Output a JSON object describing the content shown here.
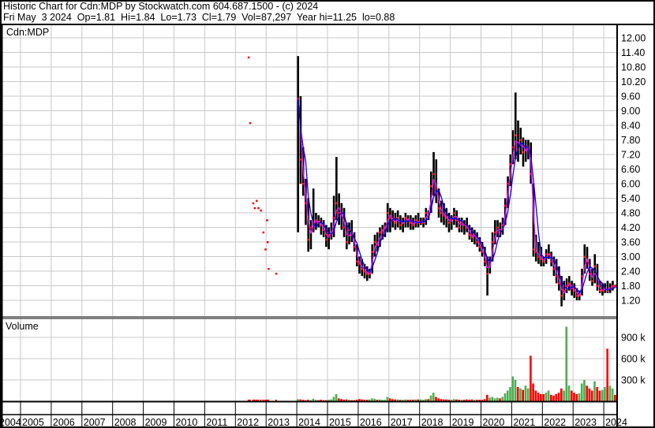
{
  "header": {
    "title": "Historic Chart for Cdn:MDP by Stockwatch.com 604.687.1500 - (c) 2024",
    "quote": "Fri May  3 2024  Op=1.81  Hi=1.84  Lo=1.73  Cl=1.79  Vol=87,297  Year hi=11.25  lo=0.88"
  },
  "colors": {
    "price_bar": "#000000",
    "close_mark": "#ff0000",
    "ma_short": "#ff00ff",
    "ma_long": "#0000ff",
    "vol_up": "#4caf50",
    "vol_down": "#ff0000",
    "grid": "#c8c8c8"
  },
  "chart_data": {
    "type": "ohlc",
    "symbol_label": "Cdn:MDP",
    "volume_label": "Volume",
    "y_ticks": [
      "12.00",
      "11.40",
      "10.80",
      "10.20",
      "9.60",
      "9.00",
      "8.40",
      "7.80",
      "7.20",
      "6.60",
      "6.00",
      "5.40",
      "4.80",
      "4.20",
      "3.60",
      "3.00",
      "2.40",
      "1.80",
      "1.20"
    ],
    "ylim": [
      1.2,
      12.0
    ],
    "volume_ticks": [
      "900 k",
      "600 k",
      "300 k"
    ],
    "volume_ylim": [
      0,
      900
    ],
    "x_ticks": [
      "2004",
      "2005",
      "2006",
      "2007",
      "2008",
      "2009",
      "2010",
      "2011",
      "2012",
      "2013",
      "2014",
      "2015",
      "2016",
      "2017",
      "2018",
      "2019",
      "2020",
      "2021",
      "2022",
      "2023",
      "2024"
    ],
    "grid": true,
    "sparse_trades": [
      {
        "t": 2012.4,
        "close": 11.2
      },
      {
        "t": 2012.45,
        "close": 8.5
      },
      {
        "t": 2012.55,
        "close": 5.2
      },
      {
        "t": 2012.6,
        "close": 5.0
      },
      {
        "t": 2012.66,
        "close": 5.3
      },
      {
        "t": 2012.72,
        "close": 5.0
      },
      {
        "t": 2012.8,
        "close": 4.9
      },
      {
        "t": 2012.88,
        "close": 4.0
      },
      {
        "t": 2012.95,
        "close": 3.3
      },
      {
        "t": 2013.0,
        "close": 4.5
      },
      {
        "t": 2013.02,
        "close": 3.6
      },
      {
        "t": 2013.05,
        "close": 2.5
      },
      {
        "t": 2013.3,
        "close": 2.3
      }
    ],
    "months": [
      "2014-01",
      "2014-02",
      "2014-03",
      "2014-04",
      "2014-05",
      "2014-06",
      "2014-07",
      "2014-08",
      "2014-09",
      "2014-10",
      "2014-11",
      "2014-12",
      "2015-01",
      "2015-02",
      "2015-03",
      "2015-04",
      "2015-05",
      "2015-06",
      "2015-07",
      "2015-08",
      "2015-09",
      "2015-10",
      "2015-11",
      "2015-12",
      "2016-01",
      "2016-02",
      "2016-03",
      "2016-04",
      "2016-05",
      "2016-06",
      "2016-07",
      "2016-08",
      "2016-09",
      "2016-10",
      "2016-11",
      "2016-12",
      "2017-01",
      "2017-02",
      "2017-03",
      "2017-04",
      "2017-05",
      "2017-06",
      "2017-07",
      "2017-08",
      "2017-09",
      "2017-10",
      "2017-11",
      "2017-12",
      "2018-01",
      "2018-02",
      "2018-03",
      "2018-04",
      "2018-05",
      "2018-06",
      "2018-07",
      "2018-08",
      "2018-09",
      "2018-10",
      "2018-11",
      "2018-12",
      "2019-01",
      "2019-02",
      "2019-03",
      "2019-04",
      "2019-05",
      "2019-06",
      "2019-07",
      "2019-08",
      "2019-09",
      "2019-10",
      "2019-11",
      "2019-12",
      "2020-01",
      "2020-02",
      "2020-03",
      "2020-04",
      "2020-05",
      "2020-06",
      "2020-07",
      "2020-08",
      "2020-09",
      "2020-10",
      "2020-11",
      "2020-12",
      "2021-01",
      "2021-02",
      "2021-03",
      "2021-04",
      "2021-05",
      "2021-06",
      "2021-07",
      "2021-08",
      "2021-09",
      "2021-10",
      "2021-11",
      "2021-12",
      "2022-01",
      "2022-02",
      "2022-03",
      "2022-04",
      "2022-05",
      "2022-06",
      "2022-07",
      "2022-08",
      "2022-09",
      "2022-10",
      "2022-11",
      "2022-12",
      "2023-01",
      "2023-02",
      "2023-03",
      "2023-04",
      "2023-05",
      "2023-06",
      "2023-07",
      "2023-08",
      "2023-09",
      "2023-10",
      "2023-11",
      "2023-12",
      "2024-01",
      "2024-02",
      "2024-03",
      "2024-04",
      "2024-05"
    ],
    "high": [
      11.25,
      9.6,
      7.5,
      6.2,
      5.4,
      4.5,
      5.8,
      4.8,
      4.7,
      4.6,
      4.5,
      4.3,
      4.2,
      4.4,
      5.5,
      7.1,
      5.6,
      5.2,
      5.0,
      4.4,
      4.4,
      4.5,
      4.0,
      3.5,
      3.0,
      2.9,
      2.7,
      2.6,
      2.5,
      3.5,
      3.9,
      4.0,
      4.2,
      4.3,
      4.4,
      5.2,
      5.0,
      4.9,
      4.8,
      4.9,
      4.7,
      4.6,
      4.8,
      4.7,
      4.7,
      4.6,
      4.7,
      4.8,
      4.6,
      4.6,
      5.0,
      4.9,
      6.5,
      7.3,
      7.0,
      5.8,
      5.3,
      5.2,
      5.0,
      4.8,
      4.7,
      5.0,
      4.9,
      4.6,
      4.6,
      4.5,
      4.6,
      4.3,
      4.2,
      4.1,
      4.0,
      3.8,
      3.6,
      3.4,
      3.0,
      3.0,
      4.0,
      4.5,
      4.5,
      4.4,
      4.6,
      5.4,
      6.3,
      7.2,
      8.2,
      9.75,
      8.6,
      8.3,
      7.9,
      7.8,
      7.8,
      7.7,
      6.0,
      3.9,
      3.6,
      3.4,
      3.0,
      3.3,
      3.5,
      3.2,
      3.0,
      2.9,
      2.6,
      2.2,
      2.0,
      2.1,
      2.2,
      2.0,
      1.9,
      1.7,
      1.6,
      2.5,
      3.5,
      3.4,
      2.9,
      2.5,
      3.1,
      2.7,
      2.0,
      1.9,
      1.9,
      2.0,
      1.9,
      2.0,
      1.84
    ],
    "low": [
      4.0,
      6.0,
      5.5,
      4.3,
      3.2,
      3.3,
      4.0,
      4.1,
      4.2,
      3.9,
      3.8,
      3.4,
      3.3,
      3.7,
      3.8,
      4.5,
      4.3,
      4.1,
      3.8,
      3.3,
      3.5,
      3.6,
      3.2,
      2.6,
      2.3,
      2.2,
      2.1,
      2.0,
      2.1,
      2.3,
      3.0,
      3.2,
      3.4,
      3.7,
      3.8,
      4.0,
      4.0,
      4.2,
      4.1,
      4.2,
      4.1,
      4.0,
      4.2,
      4.2,
      4.1,
      4.1,
      4.2,
      4.2,
      4.3,
      4.2,
      4.3,
      4.5,
      4.8,
      5.5,
      5.2,
      4.6,
      4.4,
      4.3,
      4.2,
      4.0,
      4.1,
      4.3,
      4.2,
      4.0,
      4.0,
      3.9,
      4.0,
      3.7,
      3.6,
      3.5,
      3.4,
      3.2,
      3.0,
      2.6,
      1.4,
      2.3,
      2.8,
      3.5,
      3.8,
      3.8,
      3.9,
      4.3,
      5.0,
      5.9,
      6.8,
      7.0,
      6.9,
      7.2,
      6.7,
      6.9,
      7.0,
      6.0,
      3.0,
      2.8,
      2.7,
      2.6,
      2.6,
      2.7,
      2.9,
      2.6,
      2.2,
      1.9,
      1.6,
      0.95,
      1.2,
      1.5,
      1.6,
      1.4,
      1.3,
      1.2,
      1.2,
      1.4,
      2.3,
      2.5,
      2.0,
      1.8,
      1.9,
      1.6,
      1.5,
      1.4,
      1.5,
      1.5,
      1.5,
      1.6,
      1.73
    ],
    "close": [
      9.5,
      7.0,
      6.0,
      5.2,
      3.7,
      4.2,
      4.4,
      4.5,
      4.4,
      4.3,
      4.1,
      3.7,
      3.9,
      4.0,
      4.6,
      5.2,
      4.8,
      4.7,
      4.2,
      3.6,
      4.1,
      3.9,
      3.4,
      2.8,
      2.7,
      2.5,
      2.4,
      2.3,
      2.3,
      3.2,
      3.6,
      3.5,
      4.0,
      4.1,
      4.2,
      4.8,
      4.6,
      4.5,
      4.4,
      4.6,
      4.3,
      4.4,
      4.6,
      4.5,
      4.4,
      4.3,
      4.5,
      4.4,
      4.4,
      4.4,
      4.8,
      4.7,
      5.9,
      6.4,
      5.6,
      5.0,
      4.8,
      4.7,
      4.6,
      4.4,
      4.5,
      4.8,
      4.5,
      4.2,
      4.4,
      4.3,
      4.2,
      3.9,
      3.8,
      3.9,
      3.6,
      3.4,
      3.2,
      2.8,
      2.3,
      2.8,
      3.6,
      4.0,
      4.2,
      4.0,
      4.3,
      5.1,
      6.0,
      6.8,
      7.5,
      8.0,
      7.4,
      7.8,
      7.3,
      7.4,
      7.5,
      6.4,
      3.3,
      3.2,
      3.0,
      2.9,
      2.8,
      3.1,
      3.1,
      2.8,
      2.5,
      2.2,
      1.9,
      1.4,
      1.6,
      1.8,
      1.9,
      1.7,
      1.6,
      1.4,
      1.4,
      2.2,
      3.0,
      2.8,
      2.3,
      2.0,
      2.6,
      1.8,
      1.6,
      1.6,
      1.7,
      1.6,
      1.7,
      1.8,
      1.79
    ],
    "volume_k": [
      30,
      25,
      20,
      15,
      20,
      15,
      35,
      20,
      15,
      20,
      15,
      15,
      20,
      25,
      60,
      100,
      40,
      30,
      20,
      25,
      20,
      15,
      15,
      20,
      30,
      25,
      20,
      20,
      25,
      40,
      35,
      20,
      25,
      20,
      20,
      60,
      40,
      30,
      25,
      25,
      20,
      20,
      25,
      20,
      20,
      20,
      25,
      25,
      25,
      20,
      30,
      30,
      80,
      120,
      60,
      40,
      30,
      25,
      25,
      20,
      20,
      30,
      25,
      20,
      20,
      20,
      25,
      20,
      25,
      20,
      20,
      20,
      20,
      30,
      90,
      50,
      60,
      40,
      50,
      40,
      60,
      110,
      150,
      200,
      350,
      300,
      200,
      180,
      160,
      220,
      180,
      640,
      250,
      150,
      120,
      100,
      100,
      120,
      150,
      90,
      80,
      100,
      120,
      180,
      150,
      1050,
      220,
      150,
      120,
      100,
      110,
      250,
      300,
      220,
      180,
      150,
      280,
      200,
      150,
      160,
      200,
      740,
      220,
      180,
      90
    ]
  }
}
